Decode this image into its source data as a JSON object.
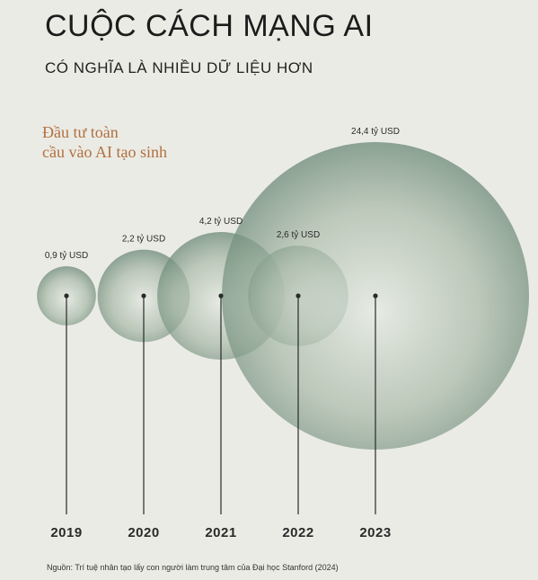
{
  "title": "CUỘC CÁCH MẠNG AI",
  "subtitle": "CÓ NGHĨA LÀ NHIỀU DỮ LIỆU HƠN",
  "caption": [
    "Đầu tư toàn",
    "cầu vào AI tạo sinh"
  ],
  "source": "Nguồn: Trí tuệ nhân tạo lấy con người làm trung tâm của Đại học Stanford (2024)",
  "colors": {
    "bubble": "#5f7f6c",
    "caption": "#b0703f",
    "background": "#ebebe5"
  },
  "chart_data": {
    "type": "bubble",
    "categories": [
      "2019",
      "2020",
      "2021",
      "2022",
      "2023"
    ],
    "values": [
      0.9,
      2.2,
      4.2,
      2.6,
      24.4
    ],
    "value_labels": [
      "0,9 tỷ USD",
      "2,2 tỷ USD",
      "4,2 tỷ USD",
      "2,6 tỷ USD",
      "24,4 tỷ USD"
    ],
    "unit": "tỷ USD"
  }
}
